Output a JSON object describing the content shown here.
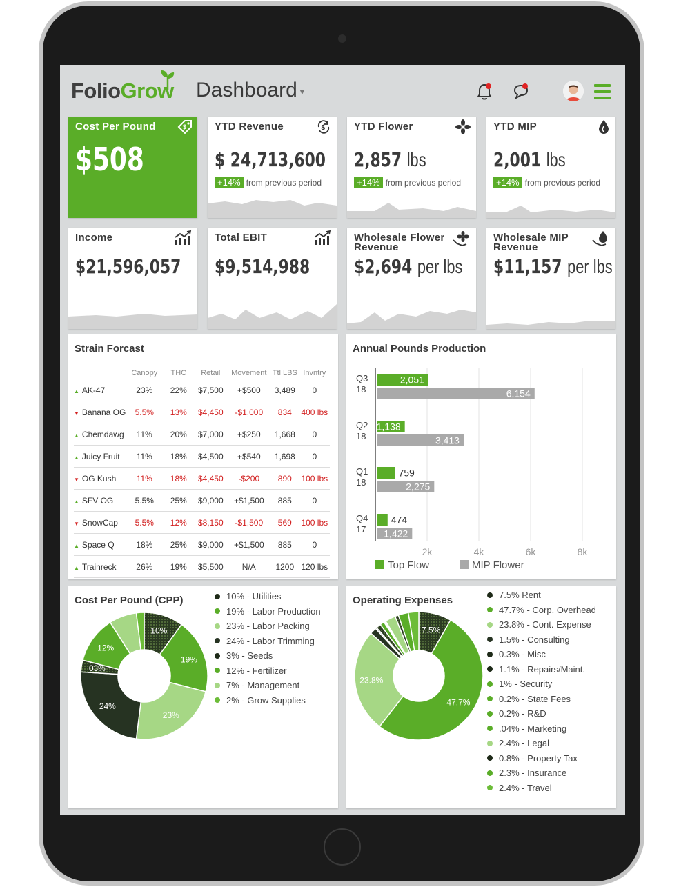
{
  "app": {
    "logo_folio": "Folio",
    "logo_grow": "Grow",
    "title": "Dashboard"
  },
  "colors": {
    "brand_green": "#5aad28",
    "dark_green": "#2b3a22",
    "light_green": "#a6d785",
    "gray_bar": "#a9a9a9",
    "alert_red": "#e02424"
  },
  "header_icons": [
    "bell-icon",
    "chat-icon",
    "avatar",
    "hamburger-menu-icon"
  ],
  "kpi_top": [
    {
      "label": "Cost Per Pound",
      "value": "$508",
      "icon": "price-tag-icon"
    },
    {
      "label": "YTD Revenue",
      "value": "$ 24,713,600",
      "change": "+14%",
      "change_text": "from previous period",
      "icon": "dollar-cycle-icon"
    },
    {
      "label": "YTD Flower",
      "value": "2,857",
      "unit": "lbs",
      "change": "+14%",
      "change_text": "from previous period",
      "icon": "flower-icon"
    },
    {
      "label": "YTD MIP",
      "value": "2,001",
      "unit": "lbs",
      "change": "+14%",
      "change_text": "from previous period",
      "icon": "drop-icon"
    }
  ],
  "kpi_bottom": [
    {
      "label": "Income",
      "value": "$21,596,057",
      "icon": "growth-chart-icon"
    },
    {
      "label": "Total EBIT",
      "value": "$9,514,988",
      "icon": "growth-chart-icon"
    },
    {
      "label": "Wholesale Flower Revenue",
      "value": "$2,694",
      "unit": "per lbs",
      "icon": "flower-hand-icon"
    },
    {
      "label": "Wholesale MIP Revenue",
      "value": "$11,157",
      "unit": "per lbs",
      "icon": "drop-hand-icon"
    }
  ],
  "strain": {
    "title": "Strain Forcast",
    "columns": [
      "",
      "Canopy",
      "THC",
      "Retail",
      "Movement",
      "Ttl LBS",
      "Invntry"
    ],
    "rows": [
      {
        "trend": "up",
        "name": "AK-47",
        "canopy": "23%",
        "thc": "22%",
        "retail": "$7,500",
        "movement": "+$500",
        "ttl": "3,489",
        "inv": "0"
      },
      {
        "trend": "down",
        "name": "Banana OG",
        "canopy": "5.5%",
        "thc": "13%",
        "retail": "$4,450",
        "movement": "-$1,000",
        "ttl": "834",
        "inv": "400 lbs"
      },
      {
        "trend": "up",
        "name": "Chemdawg",
        "canopy": "11%",
        "thc": "20%",
        "retail": "$7,000",
        "movement": "+$250",
        "ttl": "1,668",
        "inv": "0"
      },
      {
        "trend": "up",
        "name": "Juicy Fruit",
        "canopy": "11%",
        "thc": "18%",
        "retail": "$4,500",
        "movement": "+$540",
        "ttl": "1,698",
        "inv": "0"
      },
      {
        "trend": "down",
        "name": "OG Kush",
        "canopy": "11%",
        "thc": "18%",
        "retail": "$4,450",
        "movement": "-$200",
        "ttl": "890",
        "inv": "100 lbs"
      },
      {
        "trend": "up",
        "name": "SFV OG",
        "canopy": "5.5%",
        "thc": "25%",
        "retail": "$9,000",
        "movement": "+$1,500",
        "ttl": "885",
        "inv": "0"
      },
      {
        "trend": "down",
        "name": "SnowCap",
        "canopy": "5.5%",
        "thc": "12%",
        "retail": "$8,150",
        "movement": "-$1,500",
        "ttl": "569",
        "inv": "100 lbs"
      },
      {
        "trend": "up",
        "name": "Space Q",
        "canopy": "18%",
        "thc": "25%",
        "retail": "$9,000",
        "movement": "+$1,500",
        "ttl": "885",
        "inv": "0"
      },
      {
        "trend": "up",
        "name": "Trainreck",
        "canopy": "26%",
        "thc": "19%",
        "retail": "$5,500",
        "movement": "N/A",
        "ttl": "1200",
        "inv": "120 lbs"
      }
    ]
  },
  "chart_data": [
    {
      "type": "bar",
      "orientation": "horizontal",
      "title": "Annual Pounds Production",
      "categories": [
        "Q3 18",
        "Q2 18",
        "Q1 18",
        "Q4 17"
      ],
      "series": [
        {
          "name": "Top Flow",
          "color": "#5aad28",
          "values": [
            2051,
            1138,
            759,
            474
          ]
        },
        {
          "name": "MIP Flower",
          "color": "#a9a9a9",
          "values": [
            6154,
            3413,
            2275,
            1422
          ]
        }
      ],
      "value_labels": {
        "Top Flow": [
          "2,051",
          "1,138",
          "759",
          "474"
        ],
        "MIP Flower": [
          "6,154",
          "3,413",
          "2,275",
          "1,422"
        ]
      },
      "xticks": [
        "2k",
        "4k",
        "6k",
        "8k"
      ],
      "xlim": [
        0,
        8800
      ],
      "grid": true,
      "legend": "bottom"
    },
    {
      "type": "pie",
      "title": "Cost Per Pound (CPP)",
      "slices": [
        {
          "label": "10% - Utilities",
          "value": 10,
          "color": "#2b3a22",
          "pattern": true,
          "slice_label": "10%"
        },
        {
          "label": "19% - Labor Production",
          "value": 19,
          "color": "#5aad28",
          "slice_label": "19%"
        },
        {
          "label": "23% - Labor Packing",
          "value": 23,
          "color": "#a6d785",
          "slice_label": "23%"
        },
        {
          "label": "24% - Labor Trimming",
          "value": 24,
          "color": "#263322",
          "slice_label": "24%"
        },
        {
          "label": "3% - Seeds",
          "value": 3,
          "color": "#2b3a22",
          "pattern": true,
          "slice_label": "03%"
        },
        {
          "label": "12% - Fertilizer",
          "value": 12,
          "color": "#5aad28",
          "slice_label": "12%"
        },
        {
          "label": "7% - Management",
          "value": 7,
          "color": "#a6d785",
          "slice_label": ""
        },
        {
          "label": "2% - Grow Supplies",
          "value": 2,
          "color": "#6cbc38",
          "slice_label": ""
        }
      ]
    },
    {
      "type": "pie",
      "title": "Operating Expenses",
      "slices": [
        {
          "label": "7.5% Rent",
          "value": 7.5,
          "color": "#2b3a22",
          "pattern": true,
          "slice_label": "7.5%"
        },
        {
          "label": "47.7% - Corp. Overhead",
          "value": 47.7,
          "color": "#5aad28",
          "slice_label": "47.7%"
        },
        {
          "label": "23.8% - Cont. Expense",
          "value": 23.8,
          "color": "#a6d785",
          "slice_label": "23.8%"
        },
        {
          "label": "1.5% - Consulting",
          "value": 1.5,
          "color": "#263322",
          "slice_label": ""
        },
        {
          "label": "0.3% - Misc",
          "value": 0.3,
          "color": "#2b3a22",
          "pattern": true,
          "slice_label": ""
        },
        {
          "label": "1.1% - Repairs/Maint.",
          "value": 1.1,
          "color": "#2b3a22",
          "pattern": true,
          "slice_label": ""
        },
        {
          "label": "1% - Security",
          "value": 1,
          "color": "#5aad28",
          "slice_label": ""
        },
        {
          "label": "0.2% - State Fees",
          "value": 0.2,
          "color": "#5aad28",
          "slice_label": ""
        },
        {
          "label": "0.2% - R&D",
          "value": 0.2,
          "color": "#5aad28",
          "slice_label": ""
        },
        {
          "label": ".04% - Marketing",
          "value": 0.04,
          "color": "#5aad28",
          "slice_label": ""
        },
        {
          "label": "2.4% - Legal",
          "value": 2.4,
          "color": "#a6d785",
          "slice_label": ""
        },
        {
          "label": "0.8% - Property Tax",
          "value": 0.8,
          "color": "#2b3a22",
          "pattern": true,
          "slice_label": ""
        },
        {
          "label": "2.3% - Insurance",
          "value": 2.3,
          "color": "#5aad28",
          "slice_label": ""
        },
        {
          "label": "2.4% - Travel",
          "value": 2.4,
          "color": "#6cbc38",
          "slice_label": ""
        }
      ]
    }
  ]
}
